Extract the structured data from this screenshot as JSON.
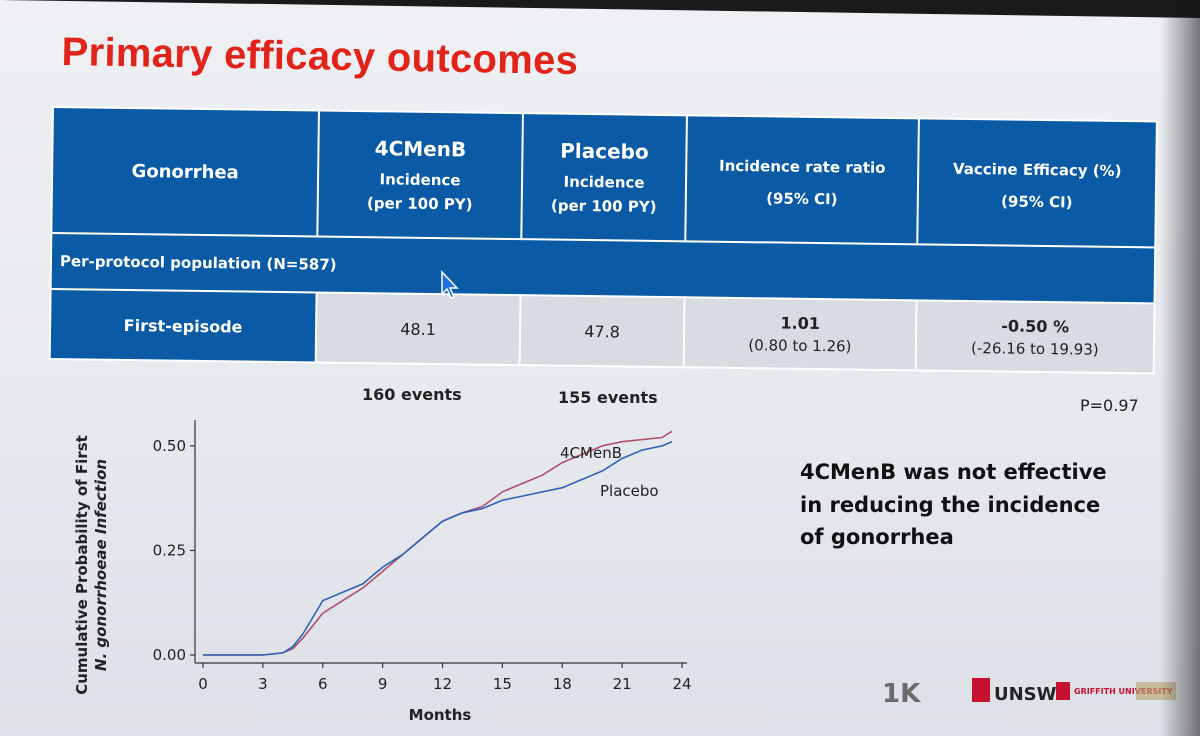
{
  "slide": {
    "title": "Primary efficacy outcomes",
    "p_value": "P=0.97",
    "conclusion": [
      "4CMenB was not effective",
      "in reducing the incidence",
      "of gonorrhea"
    ]
  },
  "table": {
    "headers": {
      "col0": "Gonorrhea",
      "col1_main": "4CMenB",
      "col1_sub1": "Incidence",
      "col1_sub2": "(per 100 PY)",
      "col2_main": "Placebo",
      "col2_sub1": "Incidence",
      "col2_sub2": "(per 100 PY)",
      "col3_l1": "Incidence rate ratio",
      "col3_l2": "(95% CI)",
      "col4_l1": "Vaccine Efficacy (%)",
      "col4_l2": "(95% CI)"
    },
    "population": "Per-protocol  population (N=587)",
    "row": {
      "label": "First-episode",
      "menb": "48.1",
      "placebo": "47.8",
      "irr": "1.01",
      "irr_ci": "(0.80 to 1.26)",
      "ve": "-0.50 %",
      "ve_ci": "(-26.16 to 19.93)"
    },
    "events_menb": "160 events",
    "events_placebo": "155 events"
  },
  "colors": {
    "title_red": "#e2231a",
    "header_blue": "#0b5aa5",
    "menb_line": "#b0506a",
    "placebo_line": "#2f63b8"
  },
  "logos": {
    "logo1": "1K",
    "logo2": "UNSW",
    "logo3": "GRIFFITH UNIVERSITY"
  },
  "chart_data": {
    "type": "line",
    "title": "",
    "xlabel": "Months",
    "ylabel_line1": "Cumulative Probability of First",
    "ylabel_line2": "N. gonorrhoeae Infection",
    "xlim": [
      0,
      24
    ],
    "ylim": [
      0,
      0.55
    ],
    "xticks": [
      0,
      3,
      6,
      9,
      12,
      15,
      18,
      21,
      24
    ],
    "yticks": [
      0.0,
      0.25,
      0.5
    ],
    "ytick_labels": [
      "0.00",
      "0.25",
      "0.50"
    ],
    "series": [
      {
        "name": "4CMenB",
        "color": "#b0506a",
        "x": [
          0,
          3,
          4,
          4.5,
          5,
          5.5,
          6,
          7,
          8,
          9,
          10,
          11,
          12,
          13,
          14,
          15,
          16,
          17,
          18,
          19,
          20,
          21,
          22,
          23,
          23.5
        ],
        "y": [
          0.0,
          0.0,
          0.005,
          0.015,
          0.04,
          0.07,
          0.1,
          0.13,
          0.16,
          0.2,
          0.24,
          0.28,
          0.32,
          0.34,
          0.355,
          0.39,
          0.41,
          0.43,
          0.46,
          0.48,
          0.5,
          0.51,
          0.515,
          0.52,
          0.535
        ]
      },
      {
        "name": "Placebo",
        "color": "#2f63b8",
        "x": [
          0,
          3,
          4,
          4.5,
          5,
          5.5,
          6,
          7,
          8,
          9,
          10,
          11,
          12,
          13,
          14,
          15,
          16,
          17,
          18,
          19,
          20,
          21,
          22,
          23,
          23.5
        ],
        "y": [
          0.0,
          0.0,
          0.005,
          0.02,
          0.05,
          0.09,
          0.13,
          0.15,
          0.17,
          0.21,
          0.24,
          0.28,
          0.32,
          0.34,
          0.35,
          0.37,
          0.38,
          0.39,
          0.4,
          0.42,
          0.44,
          0.47,
          0.49,
          0.5,
          0.51
        ]
      }
    ]
  }
}
